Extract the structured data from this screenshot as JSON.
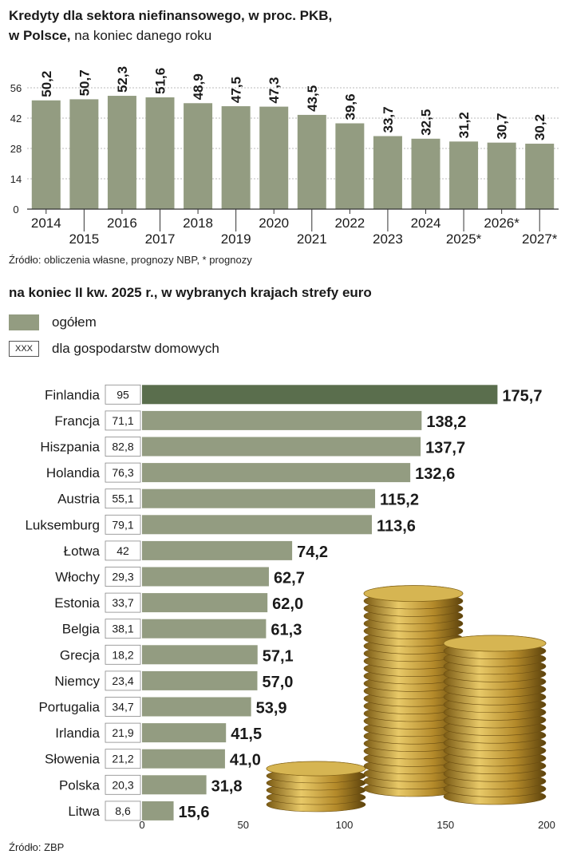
{
  "title": {
    "line1_bold": "Kredyty dla sektora niefinansowego, w proc. PKB,",
    "line2_bold": "w Polsce,",
    "line2_normal": " na koniec danego roku"
  },
  "source_top": "Źródło: obliczenia własne, prognozy NBP, * prognozy",
  "subtitle": "na koniec II kw. 2025 r., w wybranych krajach strefy euro",
  "legend": {
    "total_label": "ogółem",
    "household_marker": "XXX",
    "household_label": "dla gospodarstw domowych"
  },
  "source_bottom": "Źródło: ZBP",
  "colors": {
    "bar": "#939c81",
    "bar_highlight": "#5a6e4d",
    "axis": "#333333",
    "grid": "#bbbbbb"
  },
  "chart_data": [
    {
      "type": "bar",
      "title": "Kredyty dla sektora niefinansowego, w proc. PKB, w Polsce, na koniec danego roku",
      "categories": [
        "2014",
        "2015",
        "2016",
        "2017",
        "2018",
        "2019",
        "2020",
        "2021",
        "2022",
        "2023",
        "2024",
        "2025*",
        "2026*",
        "2027*"
      ],
      "values": [
        50.2,
        50.7,
        52.3,
        51.6,
        48.9,
        47.5,
        47.3,
        43.5,
        39.6,
        33.7,
        32.5,
        31.2,
        30.7,
        30.2
      ],
      "value_labels": [
        "50,2",
        "50,7",
        "52,3",
        "51,6",
        "48,9",
        "47,5",
        "47,3",
        "43,5",
        "39,6",
        "33,7",
        "32,5",
        "31,2",
        "30,7",
        "30,2"
      ],
      "yticks": [
        "0",
        "14",
        "28",
        "42",
        "56"
      ],
      "ylim": [
        0,
        56
      ],
      "xlabel": "",
      "ylabel": ""
    },
    {
      "type": "bar",
      "orientation": "horizontal",
      "title": "na koniec II kw. 2025 r., w wybranych krajach strefy euro",
      "categories": [
        "Finlandia",
        "Francja",
        "Hiszpania",
        "Holandia",
        "Austria",
        "Luksemburg",
        "Łotwa",
        "Włochy",
        "Estonia",
        "Belgia",
        "Grecja",
        "Niemcy",
        "Portugalia",
        "Irlandia",
        "Słowenia",
        "Polska",
        "Litwa"
      ],
      "series": [
        {
          "name": "ogółem",
          "values": [
            175.7,
            138.2,
            137.7,
            132.6,
            115.2,
            113.6,
            74.2,
            62.7,
            62.0,
            61.3,
            57.1,
            57.0,
            53.9,
            41.5,
            41.0,
            31.8,
            15.6
          ],
          "value_labels": [
            "175,7",
            "138,2",
            "137,7",
            "132,6",
            "115,2",
            "113,6",
            "74,2",
            "62,7",
            "62,0",
            "61,3",
            "57,1",
            "57,0",
            "53,9",
            "41,5",
            "41,0",
            "31,8",
            "15,6"
          ]
        },
        {
          "name": "dla gospodarstw domowych",
          "values": [
            95,
            71.1,
            82.8,
            76.3,
            55.1,
            79.1,
            42,
            29.3,
            33.7,
            38.1,
            18.2,
            23.4,
            34.7,
            21.9,
            21.2,
            20.3,
            8.6
          ],
          "value_labels": [
            "95",
            "71,1",
            "82,8",
            "76,3",
            "55,1",
            "79,1",
            "42",
            "29,3",
            "33,7",
            "38,1",
            "18,2",
            "23,4",
            "34,7",
            "21,9",
            "21,2",
            "20,3",
            "8,6"
          ]
        }
      ],
      "xticks": [
        "0",
        "50",
        "100",
        "150",
        "200"
      ],
      "xlim": [
        0,
        200
      ]
    }
  ]
}
